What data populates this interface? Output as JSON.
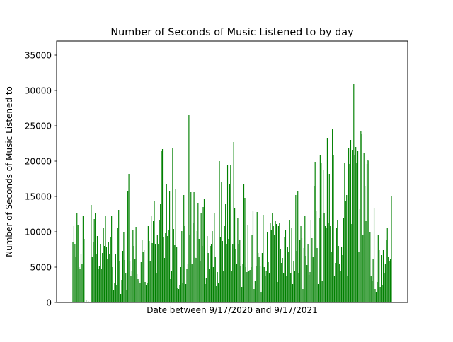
{
  "chart_data": {
    "type": "bar",
    "title": "Number of Seconds of Music Listened to by day",
    "xlabel": "Date between 9/17/2020 and 9/17/2021",
    "ylabel": "Number of Seconds of Music Listened to",
    "x_range": [
      "9/17/2020",
      "9/17/2021"
    ],
    "ylim": [
      0,
      37000
    ],
    "yticks": [
      0,
      5000,
      10000,
      15000,
      20000,
      25000,
      30000,
      35000
    ],
    "ytick_labels": [
      "0",
      "5000",
      "10000",
      "15000",
      "20000",
      "25000",
      "30000",
      "35000"
    ],
    "xticks_visible": false,
    "grid": false,
    "legend": "none",
    "bar_color": "#008000",
    "values": [
      8500,
      10800,
      8200,
      6400,
      12600,
      11000,
      5000,
      4700,
      6800,
      5500,
      12200,
      9000,
      0,
      300,
      0,
      200,
      0,
      0,
      13800,
      6400,
      8500,
      11800,
      12600,
      6800,
      9400,
      4800,
      5200,
      8300,
      4800,
      7000,
      10600,
      8000,
      12200,
      7800,
      6200,
      8500,
      6800,
      9300,
      12300,
      5000,
      1800,
      2800,
      6800,
      2400,
      10500,
      13100,
      5900,
      1200,
      3200,
      7300,
      9900,
      6000,
      4200,
      1800,
      15700,
      18200,
      5800,
      3700,
      4400,
      10200,
      8000,
      6200,
      10700,
      4000,
      3300,
      3000,
      2800,
      5700,
      8800,
      7200,
      7400,
      2900,
      2400,
      2800,
      10800,
      8700,
      5900,
      12200,
      8400,
      11500,
      14300,
      8200,
      4200,
      9600,
      8200,
      11700,
      14000,
      21500,
      21700,
      9300,
      6300,
      9800,
      16700,
      9400,
      10200,
      15800,
      3300,
      4500,
      21800,
      10400,
      8100,
      16100,
      7900,
      2100,
      1900,
      2500,
      5000,
      10100,
      2800,
      15200,
      10800,
      2600,
      4700,
      5400,
      26500,
      9500,
      15600,
      5400,
      11300,
      15600,
      6500,
      6300,
      10100,
      14100,
      9000,
      5800,
      12700,
      8000,
      13500,
      14600,
      2600,
      3400,
      9400,
      7000,
      4700,
      8000,
      8200,
      10100,
      5000,
      12700,
      6500,
      2300,
      4300,
      2800,
      20000,
      9200,
      17000,
      8700,
      4400,
      10800,
      14000,
      8200,
      19500,
      9000,
      16700,
      19500,
      4500,
      8200,
      22700,
      13300,
      7500,
      5400,
      12000,
      8200,
      8900,
      5200,
      2200,
      5500,
      16800,
      14800,
      5000,
      4300,
      10900,
      4500,
      4600,
      5000,
      9600,
      13000,
      1900,
      3000,
      5100,
      12800,
      7000,
      6400,
      5100,
      1500,
      7000,
      12400,
      5000,
      3700,
      4500,
      10000,
      5700,
      4100,
      11300,
      10200,
      12600,
      10800,
      9600,
      11500,
      11100,
      2900,
      10800,
      11300,
      7500,
      5600,
      6300,
      4100,
      9200,
      10200,
      3800,
      7800,
      7200,
      11600,
      4200,
      10600,
      2600,
      5800,
      4400,
      15200,
      7300,
      15800,
      4100,
      8800,
      10800,
      9100,
      1900,
      7700,
      12200,
      6600,
      5300,
      8300,
      3900,
      4300,
      11600,
      9100,
      6400,
      16500,
      19900,
      12900,
      7700,
      2600,
      11900,
      20800,
      19700,
      3000,
      18800,
      12600,
      10800,
      10600,
      23300,
      11300,
      18200,
      10800,
      7100,
      24600,
      20900,
      3700,
      5600,
      10500,
      11700,
      8000,
      5400,
      4400,
      7900,
      6700,
      11900,
      19700,
      14400,
      15200,
      3700,
      21900,
      19600,
      23000,
      11100,
      21600,
      30900,
      20800,
      22000,
      19700,
      21400,
      7200,
      13200,
      24200,
      23800,
      9500,
      21200,
      16500,
      11500,
      19600,
      20200,
      20000,
      10000,
      3700,
      3000,
      6100,
      13400,
      1900,
      1500,
      2900,
      9500,
      7400,
      2200,
      6700,
      2500,
      7400,
      4200,
      5400,
      8800,
      10600,
      6500,
      5900,
      6200,
      15000
    ]
  }
}
